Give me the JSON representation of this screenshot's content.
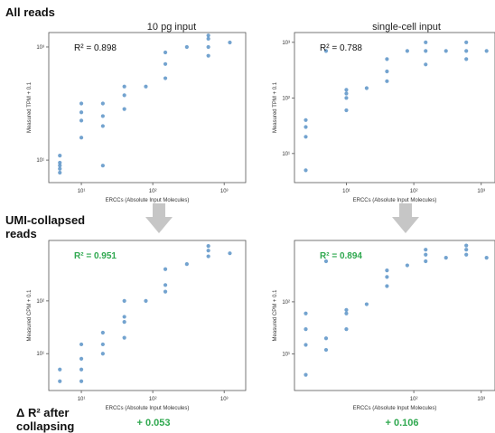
{
  "labels": {
    "all_reads": "All reads",
    "umi_collapsed": "UMI-collapsed reads",
    "delta_label": "Δ R² after collapsing",
    "col_left": "10 pg input",
    "col_right": "single-cell input"
  },
  "colors": {
    "point": "#5b93c7",
    "r2_raw": "#111111",
    "r2_umi": "#2fa84f",
    "arrow": "#c6c6c6"
  },
  "chart_data": [
    {
      "id": "p1",
      "type": "scatter",
      "title": "10 pg input",
      "r2": "R² = 0.898",
      "xlabel": "ERCCs (Absolute Input Molecules)",
      "ylabel": "Measured TPM + 0.1",
      "xscale": "log",
      "yscale": "log",
      "xlim": [
        3.5,
        2000
      ],
      "ylim": [
        4,
        1800
      ],
      "xticks": [
        {
          "v": 10,
          "label": "10¹"
        },
        {
          "v": 100,
          "label": "10²"
        },
        {
          "v": 1000,
          "label": "10³"
        }
      ],
      "yticks": [
        {
          "v": 10,
          "label": "10¹"
        },
        {
          "v": 1000,
          "label": "10³"
        }
      ],
      "points": [
        [
          5,
          6
        ],
        [
          5,
          7
        ],
        [
          5,
          8
        ],
        [
          5,
          9
        ],
        [
          5,
          12
        ],
        [
          10,
          25
        ],
        [
          10,
          50
        ],
        [
          10,
          70
        ],
        [
          10,
          100
        ],
        [
          20,
          8
        ],
        [
          20,
          40
        ],
        [
          20,
          60
        ],
        [
          20,
          100
        ],
        [
          40,
          80
        ],
        [
          40,
          140
        ],
        [
          40,
          200
        ],
        [
          80,
          200
        ],
        [
          150,
          280
        ],
        [
          150,
          500
        ],
        [
          150,
          800
        ],
        [
          300,
          1000
        ],
        [
          600,
          1000
        ],
        [
          600,
          1600
        ],
        [
          600,
          700
        ],
        [
          600,
          1400
        ],
        [
          1200,
          1200
        ]
      ]
    },
    {
      "id": "p2",
      "type": "scatter",
      "title": "single-cell input",
      "r2": "R² = 0.788",
      "xlabel": "ERCCs (Absolute Input Molecules)",
      "ylabel": "Measured TPM + 0.1",
      "xscale": "log",
      "yscale": "log",
      "xlim": [
        1.7,
        1600
      ],
      "ylim": [
        3,
        1500
      ],
      "xticks": [
        {
          "v": 10,
          "label": "10¹"
        },
        {
          "v": 100,
          "label": "10²"
        },
        {
          "v": 1000,
          "label": "10³"
        }
      ],
      "yticks": [
        {
          "v": 10,
          "label": "10¹"
        },
        {
          "v": 100,
          "label": "10²"
        },
        {
          "v": 1000,
          "label": "10³"
        }
      ],
      "points": [
        [
          2.5,
          5
        ],
        [
          2.5,
          20
        ],
        [
          2.5,
          30
        ],
        [
          2.5,
          40
        ],
        [
          5,
          700
        ],
        [
          10,
          60
        ],
        [
          10,
          100
        ],
        [
          10,
          120
        ],
        [
          10,
          140
        ],
        [
          20,
          150
        ],
        [
          40,
          200
        ],
        [
          40,
          300
        ],
        [
          40,
          500
        ],
        [
          80,
          700
        ],
        [
          150,
          400
        ],
        [
          150,
          700
        ],
        [
          150,
          1000
        ],
        [
          300,
          700
        ],
        [
          600,
          500
        ],
        [
          600,
          700
        ],
        [
          600,
          1000
        ],
        [
          1200,
          700
        ]
      ]
    },
    {
      "id": "p3",
      "type": "scatter",
      "r2": "R² = 0.951",
      "xlabel": "ERCCs (Absolute Input Molecules)",
      "ylabel": "Measured CPM + 0.1",
      "xscale": "log",
      "yscale": "log",
      "xlim": [
        3.5,
        2000
      ],
      "ylim": [
        2,
        1400
      ],
      "xticks": [
        {
          "v": 10,
          "label": "10¹"
        },
        {
          "v": 100,
          "label": "10²"
        },
        {
          "v": 1000,
          "label": "10³"
        }
      ],
      "yticks": [
        {
          "v": 10,
          "label": "10¹"
        },
        {
          "v": 100,
          "label": "10²"
        }
      ],
      "points": [
        [
          5,
          3
        ],
        [
          5,
          5
        ],
        [
          10,
          3
        ],
        [
          10,
          5
        ],
        [
          10,
          8
        ],
        [
          10,
          15
        ],
        [
          20,
          10
        ],
        [
          20,
          15
        ],
        [
          20,
          25
        ],
        [
          40,
          20
        ],
        [
          40,
          40
        ],
        [
          40,
          50
        ],
        [
          40,
          100
        ],
        [
          80,
          100
        ],
        [
          150,
          150
        ],
        [
          150,
          200
        ],
        [
          150,
          400
        ],
        [
          300,
          500
        ],
        [
          600,
          700
        ],
        [
          600,
          900
        ],
        [
          600,
          1100
        ],
        [
          1200,
          800
        ]
      ]
    },
    {
      "id": "p4",
      "type": "scatter",
      "r2": "R² = 0.894",
      "xlabel": "ERCCs (Absolute Input Molecules)",
      "ylabel": "Measured CPM + 0.1",
      "xscale": "log",
      "yscale": "log",
      "xlim": [
        1.7,
        1600
      ],
      "ylim": [
        2,
        1500
      ],
      "xticks": [
        {
          "v": 100,
          "label": "10²"
        },
        {
          "v": 1000,
          "label": "10³"
        }
      ],
      "yticks": [
        {
          "v": 10,
          "label": "10¹"
        },
        {
          "v": 100,
          "label": "10²"
        }
      ],
      "points": [
        [
          2.5,
          4
        ],
        [
          2.5,
          15
        ],
        [
          2.5,
          30
        ],
        [
          2.5,
          60
        ],
        [
          5,
          12
        ],
        [
          5,
          20
        ],
        [
          5,
          600
        ],
        [
          10,
          30
        ],
        [
          10,
          60
        ],
        [
          10,
          70
        ],
        [
          20,
          90
        ],
        [
          40,
          200
        ],
        [
          40,
          300
        ],
        [
          40,
          400
        ],
        [
          80,
          500
        ],
        [
          150,
          600
        ],
        [
          150,
          800
        ],
        [
          150,
          1000
        ],
        [
          300,
          700
        ],
        [
          600,
          800
        ],
        [
          600,
          1000
        ],
        [
          600,
          1200
        ],
        [
          1200,
          700
        ]
      ]
    }
  ],
  "deltas": {
    "left": "+ 0.053",
    "right": "+ 0.106"
  }
}
